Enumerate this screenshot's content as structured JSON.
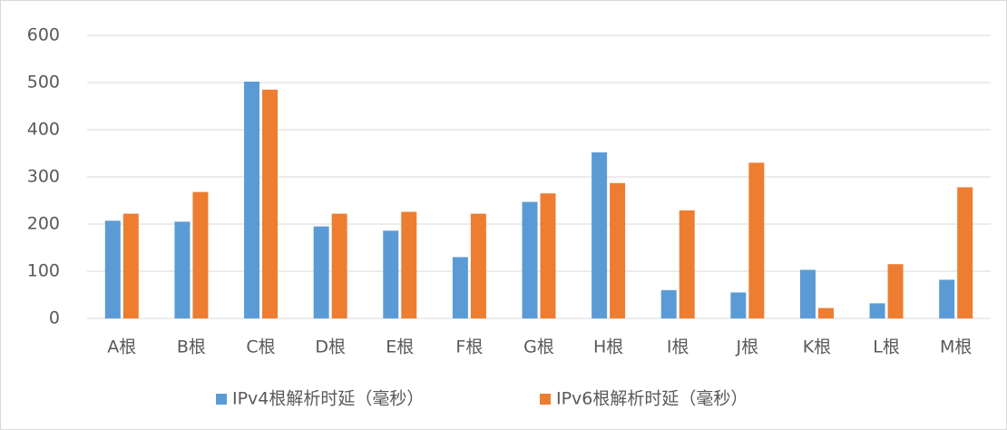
{
  "chart_data": {
    "type": "bar",
    "categories": [
      "A根",
      "B根",
      "C根",
      "D根",
      "E根",
      "F根",
      "G根",
      "H根",
      "I根",
      "J根",
      "K根",
      "L根",
      "M根"
    ],
    "series": [
      {
        "name": "IPv4根解析时延（毫秒）",
        "color": "#5b9bd5",
        "values": [
          207,
          205,
          502,
          195,
          186,
          130,
          247,
          352,
          60,
          55,
          103,
          32,
          82
        ]
      },
      {
        "name": "IPv6根解析时延（毫秒）",
        "color": "#ed7d31",
        "values": [
          222,
          268,
          485,
          222,
          226,
          222,
          265,
          287,
          229,
          330,
          22,
          115,
          278
        ]
      }
    ],
    "ylim": [
      0,
      600
    ],
    "yticks": [
      0,
      100,
      200,
      300,
      400,
      500,
      600
    ],
    "grid": true,
    "legend": "bottom"
  }
}
